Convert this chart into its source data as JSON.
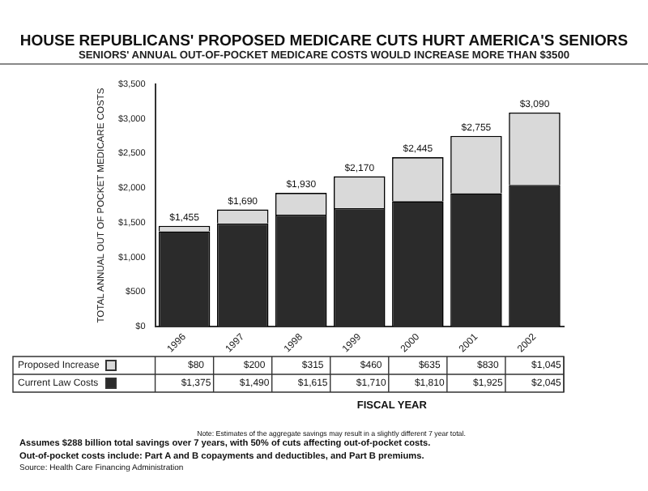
{
  "chart_data": {
    "type": "bar",
    "title": "HOUSE REPUBLICANS' PROPOSED MEDICARE CUTS HURT AMERICA'S SENIORS",
    "subtitle": "SENIORS' ANNUAL OUT-OF-POCKET MEDICARE COSTS WOULD INCREASE MORE THAN $3500",
    "xlabel": "FISCAL YEAR",
    "ylabel": "TOTAL ANNUAL OUT OF POCKET MEDICARE COSTS",
    "categories": [
      "1996",
      "1997",
      "1998",
      "1999",
      "2000",
      "2001",
      "2002"
    ],
    "stacked": true,
    "series": [
      {
        "name": "Current Law Costs",
        "color": "#2b2b2b",
        "values": [
          1375,
          1490,
          1615,
          1710,
          1810,
          1925,
          2045
        ],
        "value_labels": [
          "$1,375",
          "$1,490",
          "$1,615",
          "$1,710",
          "$1,810",
          "$1,925",
          "$2,045"
        ]
      },
      {
        "name": "Proposed Increase",
        "color": "#d9d9d9",
        "values": [
          80,
          200,
          315,
          460,
          635,
          830,
          1045
        ],
        "value_labels": [
          "$80",
          "$200",
          "$315",
          "$460",
          "$635",
          "$830",
          "$1,045"
        ]
      }
    ],
    "totals": [
      "$1,455",
      "$1,690",
      "$1,930",
      "$2,170",
      "$2,445",
      "$2,755",
      "$3,090"
    ],
    "ylim": [
      0,
      3500
    ],
    "yticks": [
      {
        "value": 0,
        "label": "$0"
      },
      {
        "value": 500,
        "label": "$500"
      },
      {
        "value": 1000,
        "label": "$1,000"
      },
      {
        "value": 1500,
        "label": "$1,500"
      },
      {
        "value": 2000,
        "label": "$2,000"
      },
      {
        "value": 2500,
        "label": "$2,500"
      },
      {
        "value": 3000,
        "label": "$3,000"
      },
      {
        "value": 3500,
        "label": "$3,500"
      }
    ],
    "grid": false,
    "legend": "bottom left",
    "annotations": [
      "Note: Estimates of the aggregate savings may result in a slightly different 7 year total.",
      "Assumes $288 billion total savings over 7 years, with 50% of cuts affecting out-of-pocket costs.",
      "Out-of-pocket costs include: Part A and B copayments and deductibles, and Part B premiums.",
      "Source: Health Care Financing Administration"
    ]
  }
}
